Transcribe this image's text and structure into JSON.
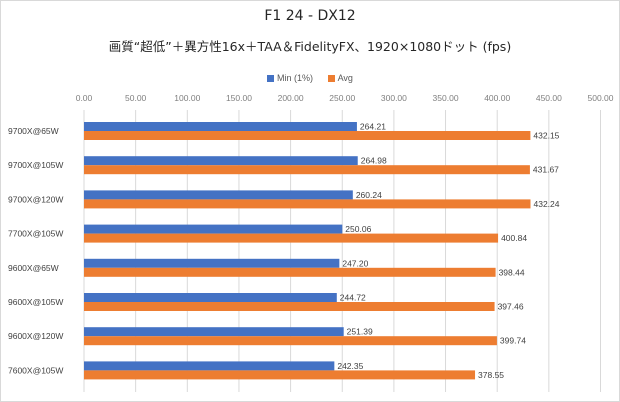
{
  "chart_data": {
    "type": "bar",
    "orientation": "horizontal",
    "title": "F1 24 - DX12",
    "subtitle": "画質“超低”＋異方性16x＋TAA＆FidelityFX、1920×1080ドット (fps)",
    "categories": [
      "9700X@65W",
      "9700X@105W",
      "9700X@120W",
      "7700X@105W",
      "9600X@65W",
      "9600X@105W",
      "9600X@120W",
      "7600X@105W"
    ],
    "series": [
      {
        "name": "Min (1%)",
        "color": "#4472c4",
        "values": [
          264.21,
          264.98,
          260.24,
          250.06,
          247.2,
          244.72,
          251.39,
          242.35
        ]
      },
      {
        "name": "Avg",
        "color": "#ed7d31",
        "values": [
          432.15,
          431.67,
          432.24,
          400.84,
          398.44,
          397.46,
          399.74,
          378.55
        ]
      }
    ],
    "data_labels": [
      [
        "264.21",
        "264.98",
        "260.24",
        "250.06",
        "247.20",
        "244.72",
        "251.39",
        "242.35"
      ],
      [
        "432.15",
        "431.67",
        "432.24",
        "400.84",
        "398.44",
        "397.46",
        "399.74",
        "378.55"
      ]
    ],
    "xlim": [
      0,
      500
    ],
    "tick_labels": [
      "0.00",
      "50.00",
      "100.00",
      "150.00",
      "200.00",
      "250.00",
      "300.00",
      "350.00",
      "400.00",
      "450.00",
      "500.00"
    ],
    "grid": true,
    "legend_position": "top"
  }
}
